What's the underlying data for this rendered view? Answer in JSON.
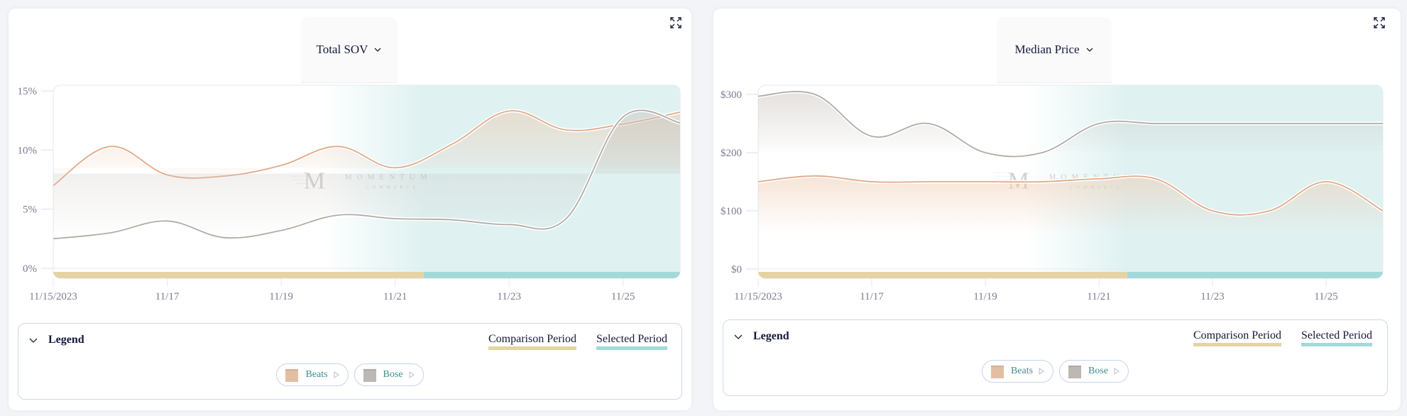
{
  "colors": {
    "beats": "#e3a988",
    "bose": "#b1aba6",
    "comparison_period": "#e6d3a3",
    "selected_period": "#a3d9da",
    "selected_bg": "#dff1f1",
    "axis_text": "#7b7d92",
    "chip_text": "#3d8f8c"
  },
  "watermark": {
    "letter": "M",
    "name": "MOMENTUM",
    "sub": "COMMERCE"
  },
  "panels": [
    {
      "metric_label": "Total SOV",
      "expand_icon": "expand-icon",
      "legend": {
        "title": "Legend",
        "periods": [
          {
            "label": "Comparison Period",
            "color": "#e6d3a3"
          },
          {
            "label": "Selected Period",
            "color": "#a3d9da"
          }
        ],
        "chips": [
          {
            "label": "Beats",
            "color": "#e2bfa3"
          },
          {
            "label": "Bose",
            "color": "#bdb8b3"
          }
        ]
      }
    },
    {
      "metric_label": "Median Price",
      "expand_icon": "expand-icon",
      "legend": {
        "title": "Legend",
        "periods": [
          {
            "label": "Comparison Period",
            "color": "#e6d3a3"
          },
          {
            "label": "Selected Period",
            "color": "#a3d9da"
          }
        ],
        "chips": [
          {
            "label": "Beats",
            "color": "#e2bfa3"
          },
          {
            "label": "Bose",
            "color": "#bdb8b3"
          }
        ]
      }
    }
  ],
  "chart_data": [
    {
      "type": "area",
      "title": "Total SOV",
      "xlabel": "",
      "ylabel": "",
      "x": [
        "11/15",
        "11/16",
        "11/17",
        "11/18",
        "11/19",
        "11/20",
        "11/21",
        "11/22",
        "11/23",
        "11/24",
        "11/25",
        "11/26"
      ],
      "x_tick_labels": [
        "11/15/2023",
        "11/17",
        "11/19",
        "11/21",
        "11/23",
        "11/25"
      ],
      "x_tick_index": [
        0,
        2,
        4,
        6,
        8,
        10
      ],
      "y_tick_labels": [
        "0%",
        "5%",
        "10%",
        "15%"
      ],
      "y_ticks": [
        0,
        5,
        10,
        15
      ],
      "ylim": [
        0,
        15
      ],
      "grid": true,
      "comparison_period": [
        "11/15",
        "11/21"
      ],
      "selected_period": [
        "11/21",
        "11/26"
      ],
      "period_split_index": 6.5,
      "series": [
        {
          "name": "Beats",
          "values": [
            7.0,
            10.3,
            7.9,
            7.8,
            8.7,
            10.3,
            8.5,
            10.5,
            13.3,
            11.7,
            12.2,
            13.2
          ]
        },
        {
          "name": "Bose",
          "values": [
            2.5,
            3.0,
            4.0,
            2.6,
            3.2,
            4.5,
            4.2,
            4.1,
            3.7,
            4.2,
            12.8,
            12.3
          ]
        }
      ]
    },
    {
      "type": "area",
      "title": "Median Price",
      "xlabel": "",
      "ylabel": "",
      "x": [
        "11/15",
        "11/16",
        "11/17",
        "11/18",
        "11/19",
        "11/20",
        "11/21",
        "11/22",
        "11/23",
        "11/24",
        "11/25",
        "11/26"
      ],
      "x_tick_labels": [
        "11/15/2023",
        "11/17",
        "11/19",
        "11/21",
        "11/23",
        "11/25"
      ],
      "x_tick_index": [
        0,
        2,
        4,
        6,
        8,
        10
      ],
      "y_tick_labels": [
        "$0",
        "$100",
        "$200",
        "$300"
      ],
      "y_ticks": [
        0,
        100,
        200,
        300
      ],
      "ylim": [
        0,
        330
      ],
      "grid": true,
      "comparison_period": [
        "11/15",
        "11/21"
      ],
      "selected_period": [
        "11/21",
        "11/26"
      ],
      "period_split_index": 6.5,
      "series": [
        {
          "name": "Beats",
          "values": [
            150,
            160,
            150,
            150,
            150,
            150,
            155,
            155,
            100,
            100,
            150,
            100
          ]
        },
        {
          "name": "Bose",
          "values": [
            297,
            300,
            228,
            250,
            200,
            200,
            250,
            250,
            250,
            250,
            250,
            250
          ]
        }
      ]
    }
  ]
}
